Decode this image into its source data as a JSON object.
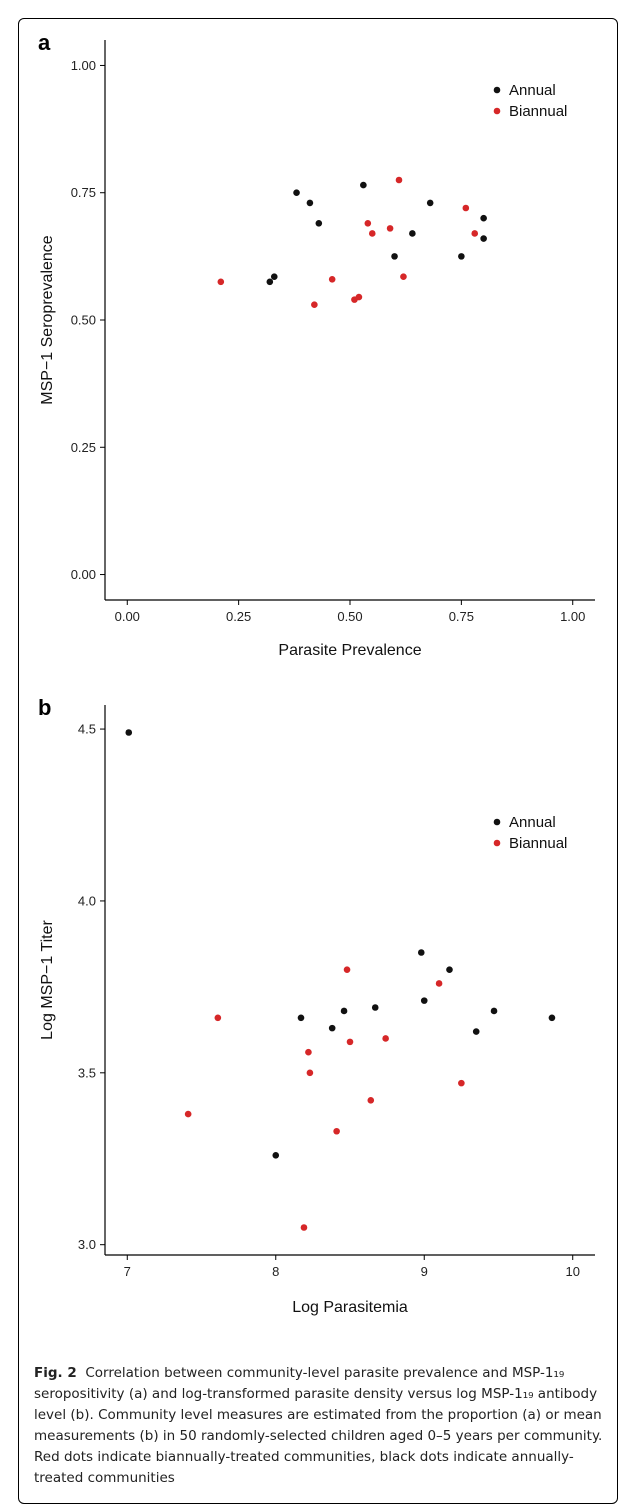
{
  "caption": {
    "fig_label": "Fig. 2",
    "text": "Correlation between community-level parasite prevalence and MSP-1₁₉ seropositivity (a) and log-transformed parasite density versus log MSP-1₁₉ antibody level (b). Community level measures are estimated from the proportion (a) or mean measurements (b) in 50 randomly-selected children aged 0–5 years per community. Red dots indicate biannually-treated communities, black dots indicate annually-treated communities"
  },
  "colors": {
    "annual": "#111111",
    "biannual": "#d62728"
  },
  "chart_data": [
    {
      "panel_label": "a",
      "type": "scatter",
      "xlabel": "Parasite Prevalence",
      "ylabel": "MSP−1 Seroprevalence",
      "xlim": [
        -0.05,
        1.05
      ],
      "ylim": [
        -0.05,
        1.05
      ],
      "xticks": [
        "0.00",
        "0.25",
        "0.50",
        "0.75",
        "1.00"
      ],
      "xtick_values": [
        0,
        0.25,
        0.5,
        0.75,
        1.0
      ],
      "yticks": [
        "0.00",
        "0.25",
        "0.50",
        "0.75",
        "1.00"
      ],
      "ytick_values": [
        0,
        0.25,
        0.5,
        0.75,
        1.0
      ],
      "legend": [
        "Annual",
        "Biannual"
      ],
      "series": [
        {
          "name": "Annual",
          "x": [
            0.38,
            0.41,
            0.43,
            0.32,
            0.33,
            0.53,
            0.6,
            0.64,
            0.68,
            0.75,
            0.8,
            0.8
          ],
          "y": [
            0.75,
            0.73,
            0.69,
            0.575,
            0.585,
            0.765,
            0.625,
            0.67,
            0.73,
            0.625,
            0.7,
            0.66
          ]
        },
        {
          "name": "Biannual",
          "x": [
            0.21,
            0.42,
            0.46,
            0.51,
            0.52,
            0.54,
            0.55,
            0.59,
            0.61,
            0.62,
            0.76,
            0.78
          ],
          "y": [
            0.575,
            0.53,
            0.58,
            0.54,
            0.545,
            0.69,
            0.67,
            0.68,
            0.775,
            0.585,
            0.72,
            0.67
          ]
        }
      ]
    },
    {
      "panel_label": "b",
      "type": "scatter",
      "xlabel": "Log Parasitemia",
      "ylabel": "Log MSP−1 Titer",
      "xlim": [
        6.85,
        10.15
      ],
      "ylim": [
        2.97,
        4.57
      ],
      "xticks": [
        "7",
        "8",
        "9",
        "10"
      ],
      "xtick_values": [
        7,
        8,
        9,
        10
      ],
      "yticks": [
        "3.0",
        "3.5",
        "4.0",
        "4.5"
      ],
      "ytick_values": [
        3.0,
        3.5,
        4.0,
        4.5
      ],
      "legend": [
        "Annual",
        "Biannual"
      ],
      "series": [
        {
          "name": "Annual",
          "x": [
            7.01,
            8.0,
            8.17,
            8.38,
            8.46,
            8.67,
            8.98,
            9.0,
            9.17,
            9.35,
            9.47,
            9.86
          ],
          "y": [
            4.49,
            3.26,
            3.66,
            3.63,
            3.68,
            3.69,
            3.85,
            3.71,
            3.8,
            3.62,
            3.68,
            3.66
          ]
        },
        {
          "name": "Biannual",
          "x": [
            7.41,
            7.61,
            8.19,
            8.22,
            8.23,
            8.41,
            8.48,
            8.5,
            8.64,
            8.74,
            9.1,
            9.25
          ],
          "y": [
            3.38,
            3.66,
            3.05,
            3.56,
            3.5,
            3.33,
            3.8,
            3.59,
            3.42,
            3.6,
            3.76,
            3.47
          ]
        }
      ]
    }
  ]
}
